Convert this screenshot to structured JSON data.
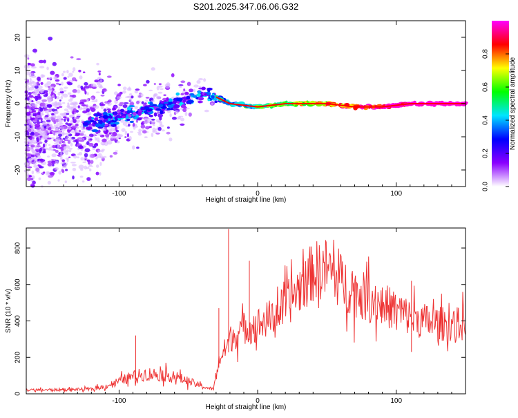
{
  "title": "S201.2025.347.06.06.G32",
  "chart_data": [
    {
      "type": "heatmap",
      "xlabel": "Height of straight line (km)",
      "ylabel": "Frequency (Hz)",
      "xlim": [
        -167,
        150
      ],
      "ylim": [
        -25,
        25
      ],
      "x_ticks": [
        -100,
        0,
        100
      ],
      "y_ticks": [
        -20,
        -10,
        0,
        10,
        20
      ],
      "colorbar": {
        "label": "Normalized spectral amplitude",
        "range": [
          0,
          1
        ],
        "ticks": [
          0.0,
          0.2,
          0.4,
          0.6,
          0.8
        ],
        "colormap": [
          "#ffffff",
          "#8a00ff",
          "#0000ff",
          "#00e5ff",
          "#00ff00",
          "#ffff00",
          "#ff0000",
          "#ff00ff"
        ]
      },
      "ridge": {
        "x": [
          -120,
          -100,
          -80,
          -60,
          -40,
          -30,
          -20,
          0,
          20,
          50,
          70,
          90,
          110,
          130,
          150
        ],
        "y": [
          -6,
          -4,
          -2,
          0,
          3,
          2,
          0,
          -1,
          0,
          0,
          -1,
          -1,
          0,
          0,
          0
        ]
      }
    },
    {
      "type": "line",
      "xlabel": "Height of straight line (km)",
      "ylabel": "SNR (10 * v/v)",
      "xlim": [
        -167,
        150
      ],
      "ylim": [
        0,
        910
      ],
      "x_ticks": [
        -100,
        0,
        100
      ],
      "y_ticks": [
        0,
        200,
        400,
        600,
        800
      ],
      "color": "#ee3333",
      "envelope": {
        "x": [
          -167,
          -120,
          -110,
          -100,
          -90,
          -80,
          -70,
          -60,
          -50,
          -40,
          -32,
          -28,
          -20,
          -10,
          0,
          10,
          20,
          30,
          40,
          50,
          60,
          70,
          80,
          90,
          100,
          110,
          120,
          130,
          140,
          150
        ],
        "y": [
          20,
          25,
          40,
          70,
          95,
          110,
          105,
          95,
          70,
          40,
          25,
          180,
          300,
          360,
          380,
          420,
          480,
          580,
          670,
          690,
          620,
          560,
          520,
          490,
          460,
          420,
          400,
          385,
          380,
          385
        ]
      },
      "spikes": [
        {
          "x": -88,
          "y": 320
        },
        {
          "x": -21,
          "y": 905
        },
        {
          "x": -28,
          "y": 470
        },
        {
          "x": -6,
          "y": 730
        },
        {
          "x": 33,
          "y": 700
        },
        {
          "x": 111,
          "y": 620
        },
        {
          "x": 111,
          "y": 230
        }
      ]
    }
  ]
}
